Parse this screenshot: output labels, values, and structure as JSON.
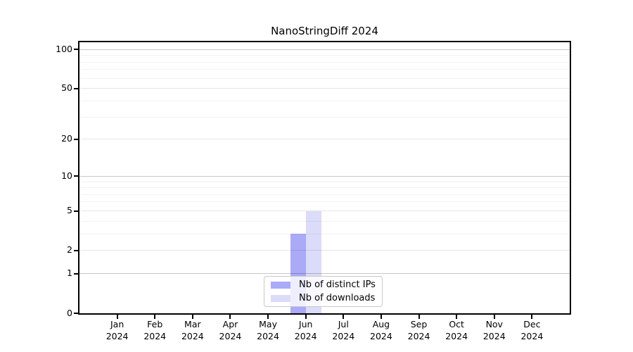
{
  "chart_data": {
    "type": "bar",
    "title": "NanoStringDiff 2024",
    "categories": [
      "Jan 2024",
      "Feb 2024",
      "Mar 2024",
      "Apr 2024",
      "May 2024",
      "Jun 2024",
      "Jul 2024",
      "Aug 2024",
      "Sep 2024",
      "Oct 2024",
      "Nov 2024",
      "Dec 2024"
    ],
    "series": [
      {
        "name": "Nb of distinct IPs",
        "color": "#aaaaf7",
        "values": [
          0,
          0,
          0,
          0,
          0,
          3,
          0,
          0,
          0,
          0,
          0,
          0
        ]
      },
      {
        "name": "Nb of downloads",
        "color": "#dbdbfa",
        "values": [
          0,
          0,
          0,
          0,
          0,
          5,
          0,
          0,
          0,
          0,
          0,
          0
        ]
      }
    ],
    "xlabel": "",
    "ylabel": "",
    "yscale": "log1p",
    "ylim": [
      0,
      115
    ],
    "yticks": [
      0,
      1,
      2,
      5,
      10,
      20,
      50,
      100
    ],
    "gridlines": {
      "major": [
        1,
        10,
        100
      ],
      "mid": [
        2,
        5,
        20,
        50
      ],
      "minor": [
        3,
        4,
        6,
        7,
        8,
        9,
        30,
        40,
        60,
        70,
        80,
        90
      ]
    },
    "grid": true,
    "legend_position": "lower center"
  },
  "legend": {
    "entries": [
      {
        "label": "Nb of distinct IPs",
        "color": "#aaaaf7"
      },
      {
        "label": "Nb of downloads",
        "color": "#dbdbfa"
      }
    ]
  }
}
